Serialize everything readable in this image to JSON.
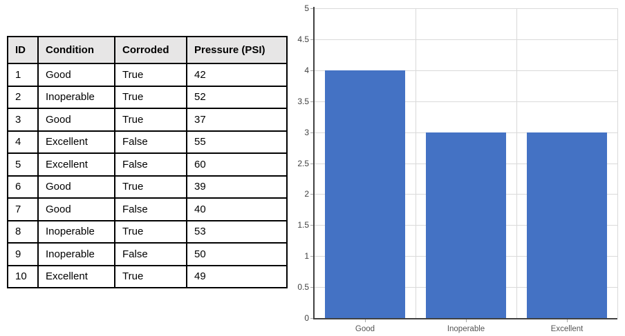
{
  "table": {
    "headers": [
      "ID",
      "Condition",
      "Corroded",
      "Pressure (PSI)"
    ],
    "column_keys": [
      "id",
      "condition",
      "corroded",
      "pressure"
    ],
    "rows": [
      [
        "1",
        "Good",
        "True",
        "42"
      ],
      [
        "2",
        "Inoperable",
        "True",
        "52"
      ],
      [
        "3",
        "Good",
        "True",
        "37"
      ],
      [
        "4",
        "Excellent",
        "False",
        "55"
      ],
      [
        "5",
        "Excellent",
        "False",
        "60"
      ],
      [
        "6",
        "Good",
        "True",
        "39"
      ],
      [
        "7",
        "Good",
        "False",
        "40"
      ],
      [
        "8",
        "Inoperable",
        "True",
        "53"
      ],
      [
        "9",
        "Inoperable",
        "False",
        "50"
      ],
      [
        "10",
        "Excellent",
        "True",
        "49"
      ]
    ],
    "header_bg": "#E7E6E6",
    "border_color": "#000000"
  },
  "chart_data": {
    "type": "bar",
    "categories": [
      "Good",
      "Inoperable",
      "Excellent"
    ],
    "values": [
      4,
      3,
      3
    ],
    "title": "",
    "xlabel": "",
    "ylabel": "",
    "ylim": [
      0,
      5
    ],
    "yticks": [
      "0",
      "0.5",
      "1",
      "1.5",
      "2",
      "2.5",
      "3",
      "3.5",
      "4",
      "4.5",
      "5"
    ],
    "grid": true,
    "legend": false,
    "bar_color": "#4472C4",
    "gridline_color": "#D9D9D9",
    "axis_color": "#404040",
    "tick_color": "#A6A6A6",
    "y_label_color": "#404040",
    "x_label_color": "#545454"
  }
}
